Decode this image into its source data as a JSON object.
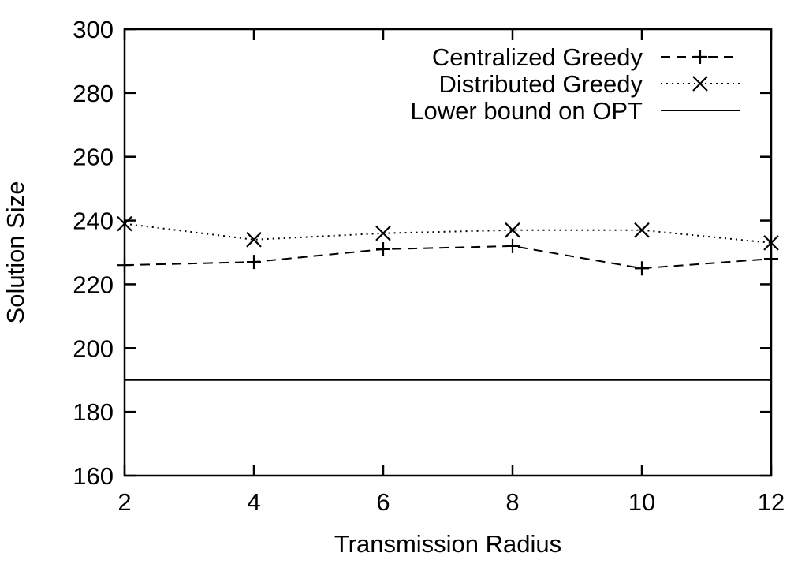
{
  "chart_data": {
    "type": "line",
    "title": "",
    "xlabel": "Transmission Radius",
    "ylabel": "Solution Size",
    "xlim": [
      2,
      12
    ],
    "ylim": [
      160,
      300
    ],
    "xticks": [
      2,
      4,
      6,
      8,
      10,
      12
    ],
    "yticks": [
      160,
      180,
      200,
      220,
      240,
      260,
      280,
      300
    ],
    "x": [
      2,
      4,
      6,
      8,
      10,
      12
    ],
    "grid": false,
    "legend_position": "top-right",
    "series": [
      {
        "name": "Centralized Greedy",
        "style": "dashed",
        "marker": "plus",
        "values": [
          226,
          227,
          231,
          232,
          225,
          228
        ]
      },
      {
        "name": "Distributed Greedy",
        "style": "dotted",
        "marker": "cross",
        "values": [
          239,
          234,
          236,
          237,
          237,
          233
        ]
      },
      {
        "name": "Lower bound on OPT",
        "style": "solid",
        "marker": "none",
        "values": [
          190,
          190,
          190,
          190,
          190,
          190
        ]
      }
    ]
  }
}
